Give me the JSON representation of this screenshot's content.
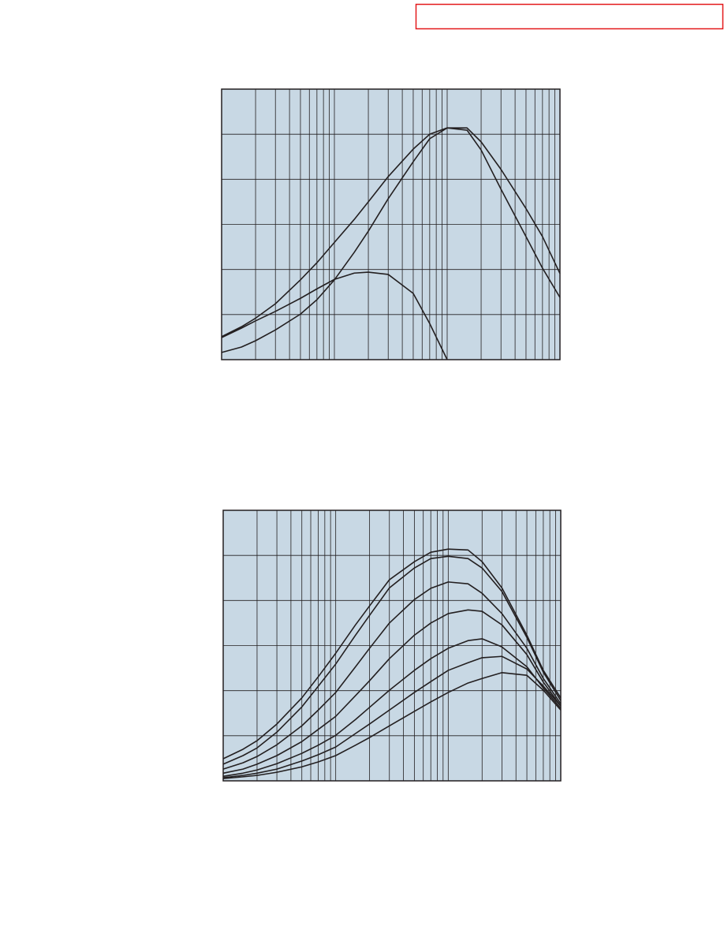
{
  "chart_data": [
    {
      "type": "line",
      "xscale": "log",
      "grid": true,
      "plot_color": "#c8d8e4",
      "grid_color": "#231f20",
      "xlim": [
        1,
        1000
      ],
      "ylim": [
        0,
        6
      ],
      "xticks": [
        1,
        2,
        3,
        4,
        5,
        6,
        7,
        8,
        9,
        10,
        20,
        30,
        40,
        50,
        60,
        70,
        80,
        90,
        100,
        200,
        300,
        400,
        500,
        600,
        700,
        800,
        900,
        1000
      ],
      "yticks": [
        0,
        1,
        2,
        3,
        4,
        5,
        6
      ],
      "x": [
        1,
        1.5,
        2,
        3,
        5,
        7,
        10,
        15,
        20,
        30,
        50,
        70,
        100,
        150,
        200,
        300,
        500,
        700,
        1000
      ],
      "series": [
        {
          "color": "#231f20",
          "values": [
            0.51,
            0.73,
            0.92,
            1.24,
            1.77,
            2.15,
            2.6,
            3.11,
            3.5,
            4.06,
            4.67,
            5.0,
            5.14,
            5.14,
            4.83,
            4.22,
            3.35,
            2.73,
            1.91
          ]
        },
        {
          "color": "#231f20",
          "values": [
            0.16,
            0.28,
            0.42,
            0.66,
            1.01,
            1.33,
            1.77,
            2.38,
            2.85,
            3.57,
            4.39,
            4.9,
            5.14,
            5.09,
            4.65,
            3.78,
            2.73,
            2.03,
            1.38
          ]
        },
        {
          "color": "#231f20",
          "values": [
            0.49,
            0.7,
            0.86,
            1.07,
            1.36,
            1.57,
            1.78,
            1.92,
            1.94,
            1.89,
            1.47,
            0.8,
            0,
            null,
            null,
            null,
            null,
            null,
            null
          ]
        }
      ]
    },
    {
      "type": "line",
      "xscale": "log",
      "grid": true,
      "plot_color": "#c8d8e4",
      "grid_color": "#231f20",
      "xlim": [
        1,
        1000
      ],
      "ylim": [
        0,
        6
      ],
      "xticks": [
        1,
        2,
        3,
        4,
        5,
        6,
        7,
        8,
        9,
        10,
        20,
        30,
        40,
        50,
        60,
        70,
        80,
        90,
        100,
        200,
        300,
        400,
        500,
        600,
        700,
        800,
        900,
        1000
      ],
      "yticks": [
        0,
        1,
        2,
        3,
        4,
        5,
        6
      ],
      "x": [
        1,
        1.5,
        2,
        3,
        5,
        7,
        10,
        15,
        20,
        30,
        50,
        70,
        100,
        150,
        200,
        300,
        500,
        700,
        1000
      ],
      "series": [
        {
          "color": "#231f20",
          "values": [
            0.49,
            0.7,
            0.89,
            1.26,
            1.84,
            2.31,
            2.83,
            3.46,
            3.88,
            4.46,
            4.86,
            5.07,
            5.14,
            5.12,
            4.86,
            4.28,
            3.23,
            2.45,
            1.84
          ]
        },
        {
          "color": "#231f20",
          "values": [
            0.37,
            0.56,
            0.73,
            1.08,
            1.64,
            2.1,
            2.59,
            3.23,
            3.67,
            4.28,
            4.72,
            4.93,
            4.98,
            4.93,
            4.72,
            4.2,
            3.18,
            2.41,
            1.78
          ]
        },
        {
          "color": "#231f20",
          "values": [
            0.26,
            0.4,
            0.54,
            0.8,
            1.22,
            1.57,
            1.96,
            2.53,
            2.94,
            3.5,
            4.02,
            4.27,
            4.41,
            4.37,
            4.16,
            3.71,
            2.94,
            2.27,
            1.71
          ]
        },
        {
          "color": "#231f20",
          "values": [
            0.17,
            0.26,
            0.37,
            0.56,
            0.87,
            1.14,
            1.43,
            1.89,
            2.22,
            2.71,
            3.23,
            3.5,
            3.71,
            3.79,
            3.76,
            3.46,
            2.8,
            2.19,
            1.66
          ]
        },
        {
          "color": "#231f20",
          "values": [
            0.1,
            0.17,
            0.24,
            0.38,
            0.61,
            0.79,
            1.01,
            1.36,
            1.63,
            2.01,
            2.45,
            2.71,
            2.94,
            3.11,
            3.15,
            2.97,
            2.53,
            2.06,
            1.61
          ]
        },
        {
          "color": "#231f20",
          "values": [
            0.07,
            0.12,
            0.17,
            0.26,
            0.44,
            0.58,
            0.75,
            1.05,
            1.26,
            1.57,
            1.96,
            2.2,
            2.45,
            2.62,
            2.73,
            2.76,
            2.48,
            2.1,
            1.66
          ]
        },
        {
          "color": "#231f20",
          "values": [
            0.05,
            0.09,
            0.12,
            0.19,
            0.31,
            0.42,
            0.56,
            0.79,
            0.96,
            1.22,
            1.54,
            1.75,
            1.96,
            2.17,
            2.27,
            2.4,
            2.34,
            2.01,
            1.57
          ]
        }
      ]
    }
  ]
}
